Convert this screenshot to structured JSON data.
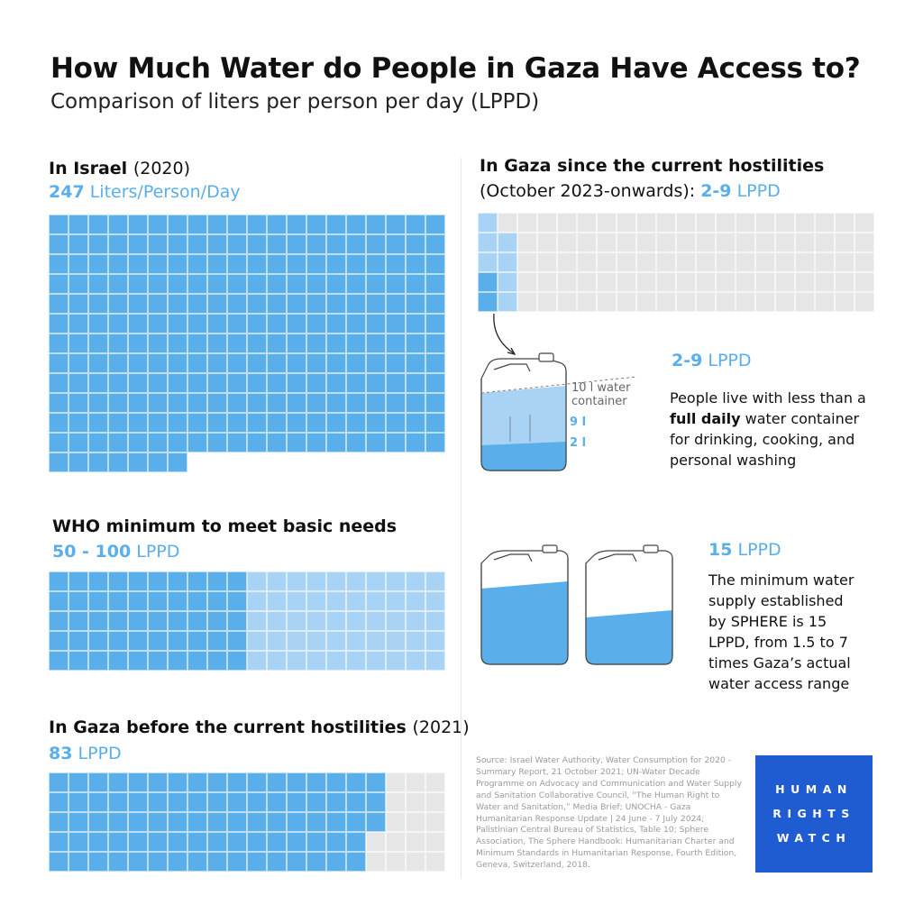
{
  "header": {
    "title": "How Much Water do People in Gaza Have Access to?",
    "subtitle": "Comparison of liters per person per day (LPPD)"
  },
  "sections": {
    "israel": {
      "heading": "In Israel",
      "heading_suffix": "(2020)",
      "value": "247",
      "unit": "Liters/Person/Day"
    },
    "who": {
      "heading": "WHO minimum to meet basic needs",
      "value": "50 - 100",
      "unit": "LPPD"
    },
    "gaza_before": {
      "heading": "In Gaza before the current hostilities",
      "heading_suffix": "(2021)",
      "value": "83",
      "unit": "LPPD"
    },
    "gaza_now": {
      "heading": "In Gaza since the current hostilities",
      "line2_prefix": "(October 2023-onwards):",
      "value": "2-9",
      "unit": "LPPD"
    }
  },
  "container_callout": {
    "value": "2-9",
    "unit": "LPPD",
    "label_line1": "10 l water",
    "label_line2": "container",
    "label_9": "9 l",
    "label_2": "2 l",
    "desc_pre": "People live with less than a",
    "desc_bold": "full daily",
    "desc_post": "water container for drinking, cooking, and personal washing"
  },
  "sphere_callout": {
    "value": "15",
    "unit": "LPPD",
    "desc": "The minimum water supply established by SPHERE is 15 LPPD, from 1.5 to 7 times Gaza’s actual water access range"
  },
  "source": "Source: Israel Water Authority, Water Consumption for 2020 - Summary Report, 21 October 2021; UN-Water Decade Programme on Advocacy and Communication and Water Supply and Sanitation Collaborative Council, “The Human Right to Water and Sanitation,” Media Brief; UNOCHA - Gaza Humanitarian Response Update | 24 June - 7 July 2024; Palistinian Central Bureau of Statistics, Table 10; Sphere Association, The Sphere Handbook: Humanitarian Charter and Minimum Standards in Humanitarian Response, Fourth Edition, Geneva, Switzerland, 2018.",
  "logo": {
    "line1": "HUMAN",
    "line2": "RIGHTS",
    "line3": "WATCH"
  },
  "colors": {
    "full": "#5aaee9",
    "light": "#a9d3f4",
    "empty": "#e6e6e6",
    "accent": "#5aaee9",
    "logo_bg": "#1f5bd1"
  },
  "chart_data": [
    {
      "type": "waffle",
      "title": "In Israel (2020)",
      "unit": "LPPD",
      "value": 247,
      "cells_per_row": 20
    },
    {
      "type": "waffle",
      "title": "WHO minimum to meet basic needs",
      "unit": "LPPD",
      "range": [
        50,
        100
      ],
      "cells_per_row": 20
    },
    {
      "type": "waffle",
      "title": "In Gaza before the current hostilities (2021)",
      "unit": "LPPD",
      "value": 83,
      "total": 100,
      "cells_per_row": 20
    },
    {
      "type": "waffle",
      "title": "In Gaza since the current hostilities (October 2023-onwards)",
      "unit": "LPPD",
      "range": [
        2,
        9
      ],
      "total": 100,
      "cells_per_row": 20
    }
  ]
}
